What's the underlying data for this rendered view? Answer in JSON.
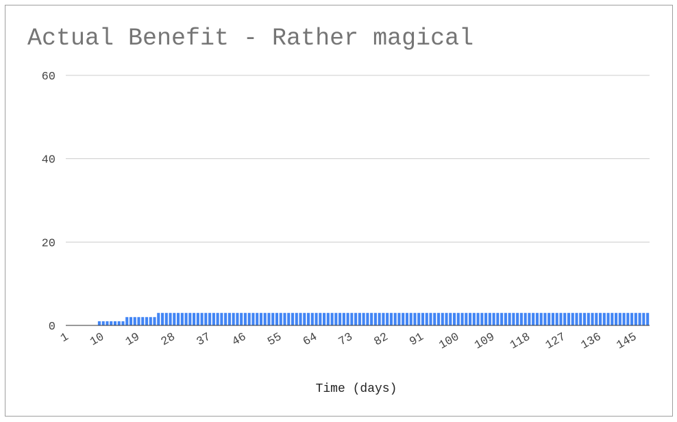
{
  "chart_data": {
    "type": "bar",
    "stacked": true,
    "title": "Actual Benefit - Rather magical",
    "xlabel": "Time (days)",
    "ylabel": "",
    "ylim": [
      0,
      60
    ],
    "yticks": [
      0,
      20,
      40,
      60
    ],
    "x_start": 1,
    "x_end": 148,
    "xticks": [
      1,
      10,
      19,
      28,
      37,
      46,
      55,
      64,
      73,
      82,
      91,
      100,
      109,
      118,
      127,
      136,
      145
    ],
    "grid": true,
    "legend": "none",
    "series": [
      {
        "color": "#4285f4",
        "values": [
          0,
          0,
          0,
          0,
          0,
          0,
          0,
          0,
          1,
          1,
          1,
          1,
          1,
          1,
          1,
          2,
          2,
          2,
          2,
          2,
          2,
          2,
          2,
          3,
          3,
          3,
          3,
          3,
          3,
          3,
          3,
          3,
          3,
          3,
          3,
          3,
          3,
          3,
          3,
          3,
          3,
          3,
          3,
          3,
          3,
          3,
          3,
          3,
          3,
          3,
          3,
          3,
          3,
          3,
          3,
          3,
          3,
          3,
          3,
          3,
          3,
          3,
          3,
          3,
          3,
          3,
          3,
          3,
          3,
          3,
          3,
          3,
          3,
          3,
          3,
          3,
          3,
          3,
          3,
          3,
          3,
          3,
          3,
          3,
          3,
          3,
          3,
          3,
          3,
          3,
          3,
          3,
          3,
          3,
          3,
          3,
          3,
          3,
          3,
          3,
          3,
          3,
          3,
          3,
          3,
          3,
          3,
          3,
          3,
          3,
          3,
          3,
          3,
          3,
          3,
          3,
          3,
          3,
          3,
          3,
          3,
          3,
          3,
          3,
          3,
          3,
          3,
          3,
          3,
          3,
          3,
          3,
          3,
          3,
          3,
          3,
          3,
          3,
          3,
          3,
          3,
          3,
          3,
          3,
          3,
          3,
          3,
          3
        ],
        "note_ignore": ""
      }
    ]
  }
}
